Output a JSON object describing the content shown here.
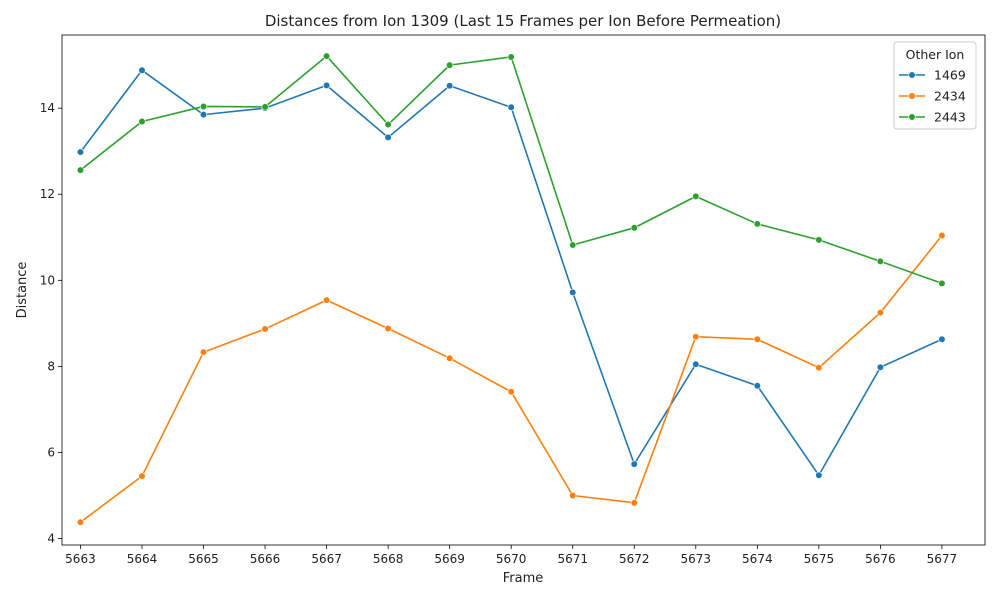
{
  "chart_data": {
    "type": "line",
    "title": "Distances from Ion 1309 (Last 15 Frames per Ion Before Permeation)",
    "xlabel": "Frame",
    "ylabel": "Distance",
    "x": [
      5663,
      5664,
      5665,
      5666,
      5667,
      5668,
      5669,
      5670,
      5671,
      5672,
      5673,
      5674,
      5675,
      5676,
      5677
    ],
    "xlim": [
      5662.7,
      5677.7
    ],
    "ylim": [
      3.85,
      15.7
    ],
    "yticks": [
      4,
      6,
      8,
      10,
      12,
      14
    ],
    "grid": false,
    "legend": {
      "title": "Other Ion",
      "position": "top-right"
    },
    "series": [
      {
        "name": "1469",
        "color": "#1f77b4",
        "values": [
          12.98,
          14.88,
          13.85,
          14.0,
          14.53,
          13.32,
          14.52,
          14.02,
          9.72,
          5.73,
          8.05,
          7.55,
          5.47,
          7.98,
          8.63
        ]
      },
      {
        "name": "2434",
        "color": "#ff7f0e",
        "values": [
          4.38,
          5.45,
          8.33,
          8.87,
          9.54,
          8.88,
          8.19,
          7.41,
          5.0,
          4.83,
          8.69,
          8.63,
          7.97,
          9.25,
          11.04
        ]
      },
      {
        "name": "2443",
        "color": "#2ca02c",
        "values": [
          12.56,
          13.69,
          14.04,
          14.03,
          15.21,
          13.62,
          15.0,
          15.19,
          10.82,
          11.22,
          11.95,
          11.31,
          10.94,
          10.44,
          9.93
        ]
      }
    ]
  }
}
